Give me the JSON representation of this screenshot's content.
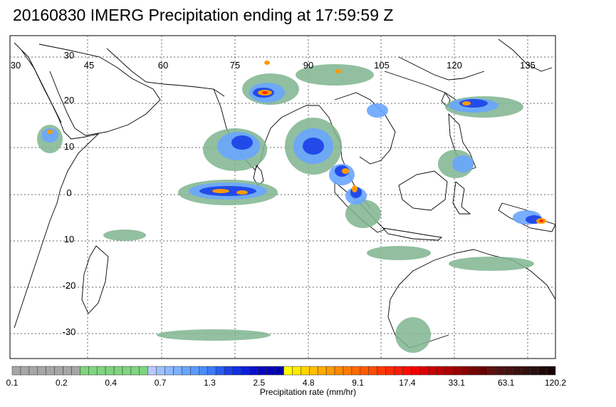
{
  "title": "20160830 IMERG Precipitation ending at 17:59:59 Z",
  "lon_labels": [
    "30",
    "45",
    "60",
    "75",
    "90",
    "105",
    "120",
    "135"
  ],
  "lat_labels": [
    "30",
    "20",
    "10",
    "0",
    "10",
    "-20",
    "-30"
  ],
  "colorbar": {
    "caption": "Precipitation rate (mm/hr)",
    "tick_labels": [
      "0.1",
      "0.2",
      "0.4",
      "0.7",
      "1.3",
      "2.5",
      "4.8",
      "9.1",
      "17.4",
      "33.1",
      "63.1",
      "120.2"
    ],
    "colors": [
      "#a6a6a6",
      "#a6a6a6",
      "#a6a6a6",
      "#a6a6a6",
      "#a6a6a6",
      "#a6a6a6",
      "#a6a6a6",
      "#a6a6a6",
      "#7fd47f",
      "#7fd47f",
      "#7fd47f",
      "#7fd47f",
      "#7fd47f",
      "#7fd47f",
      "#7fd47f",
      "#7fd47f",
      "#b8c8ff",
      "#9fc0ff",
      "#8fb8ff",
      "#7fb0ff",
      "#6aa6ff",
      "#5a9aff",
      "#4a8cff",
      "#3a7cf5",
      "#2a5cf0",
      "#1a40e8",
      "#1030e0",
      "#0a20d6",
      "#0810cc",
      "#0505c0",
      "#0303b5",
      "#0000aa",
      "#ffff00",
      "#ffea00",
      "#ffd400",
      "#ffbf00",
      "#ffaa00",
      "#ff9a00",
      "#ff8a00",
      "#ff7a00",
      "#ff6a00",
      "#ff5a00",
      "#ff4a00",
      "#ff3a00",
      "#ff2a00",
      "#ff1a00",
      "#ff0a00",
      "#f00000",
      "#dd0000",
      "#cc0000",
      "#bb0000",
      "#aa0000",
      "#990000",
      "#880000",
      "#770000",
      "#660000",
      "#5a1010",
      "#501010",
      "#461010",
      "#3c1010",
      "#321010",
      "#281010",
      "#200808",
      "#180404"
    ]
  },
  "colors": {
    "grid": "#666666",
    "coast": "#000000",
    "light_rain": "#7fb58f",
    "moderate_rain": "#6aa6ff",
    "heavy_rain": "#1a40e8",
    "intense_rain": "#ff9a00"
  }
}
